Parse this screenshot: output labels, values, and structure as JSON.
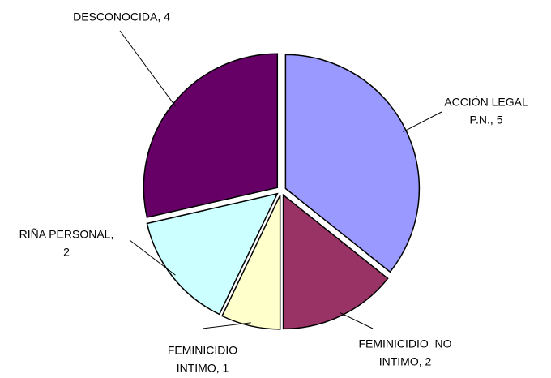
{
  "chart_data": {
    "type": "pie",
    "values": [
      5,
      2,
      1,
      2,
      4
    ],
    "labels": [
      [
        "ACCIÓN LEGAL",
        "P.N., 5"
      ],
      [
        "FEMINICIDIO  NO",
        "INTIMO, 2"
      ],
      [
        "FEMINICIDIO",
        "INTIMO, 1"
      ],
      [
        "RIÑA PERSONAL,",
        "2"
      ],
      [
        "DESCONOCIDA, 4"
      ]
    ],
    "colors": [
      "#9999ff",
      "#993366",
      "#ffffcc",
      "#ccffff",
      "#660066"
    ]
  }
}
